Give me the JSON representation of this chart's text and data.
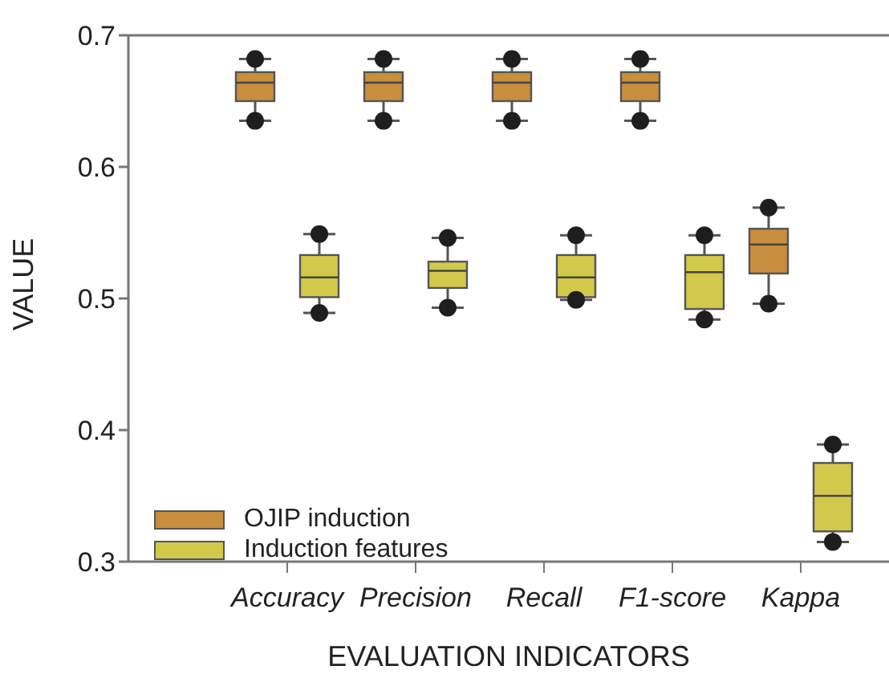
{
  "chart_data": {
    "type": "box",
    "xlabel": "EVALUATION INDICATORS",
    "ylabel": "VALUE",
    "categories": [
      "Accuracy",
      "Precision",
      "Recall",
      "F1-score",
      "Kappa"
    ],
    "ylim": [
      0.3,
      0.7
    ],
    "yticks": [
      0.3,
      0.4,
      0.5,
      0.6,
      0.7
    ],
    "legend": "bottom left",
    "grid": false,
    "series": [
      {
        "name": "OJIP induction",
        "color": "#c98e3e",
        "boxes": [
          {
            "low": 0.635,
            "q1": 0.65,
            "median": 0.664,
            "q3": 0.672,
            "high": 0.682,
            "outliers": [
              0.635,
              0.682
            ]
          },
          {
            "low": 0.635,
            "q1": 0.65,
            "median": 0.664,
            "q3": 0.672,
            "high": 0.682,
            "outliers": [
              0.635,
              0.682
            ]
          },
          {
            "low": 0.635,
            "q1": 0.65,
            "median": 0.664,
            "q3": 0.672,
            "high": 0.682,
            "outliers": [
              0.635,
              0.682
            ]
          },
          {
            "low": 0.635,
            "q1": 0.65,
            "median": 0.664,
            "q3": 0.672,
            "high": 0.682,
            "outliers": [
              0.635,
              0.682
            ]
          },
          {
            "low": 0.496,
            "q1": 0.519,
            "median": 0.541,
            "q3": 0.553,
            "high": 0.569,
            "outliers": [
              0.496,
              0.569
            ]
          }
        ]
      },
      {
        "name": "Induction features",
        "color": "#d2c94a",
        "boxes": [
          {
            "low": 0.489,
            "q1": 0.501,
            "median": 0.516,
            "q3": 0.533,
            "high": 0.549,
            "outliers": [
              0.489,
              0.549
            ]
          },
          {
            "low": 0.493,
            "q1": 0.508,
            "median": 0.521,
            "q3": 0.528,
            "high": 0.546,
            "outliers": [
              0.493,
              0.546
            ]
          },
          {
            "low": 0.499,
            "q1": 0.501,
            "median": 0.516,
            "q3": 0.533,
            "high": 0.548,
            "outliers": [
              0.499,
              0.548
            ]
          },
          {
            "low": 0.484,
            "q1": 0.492,
            "median": 0.52,
            "q3": 0.533,
            "high": 0.548,
            "outliers": [
              0.484,
              0.548
            ]
          },
          {
            "low": 0.315,
            "q1": 0.323,
            "median": 0.35,
            "q3": 0.375,
            "high": 0.389,
            "outliers": [
              0.315,
              0.389
            ]
          }
        ]
      }
    ]
  }
}
